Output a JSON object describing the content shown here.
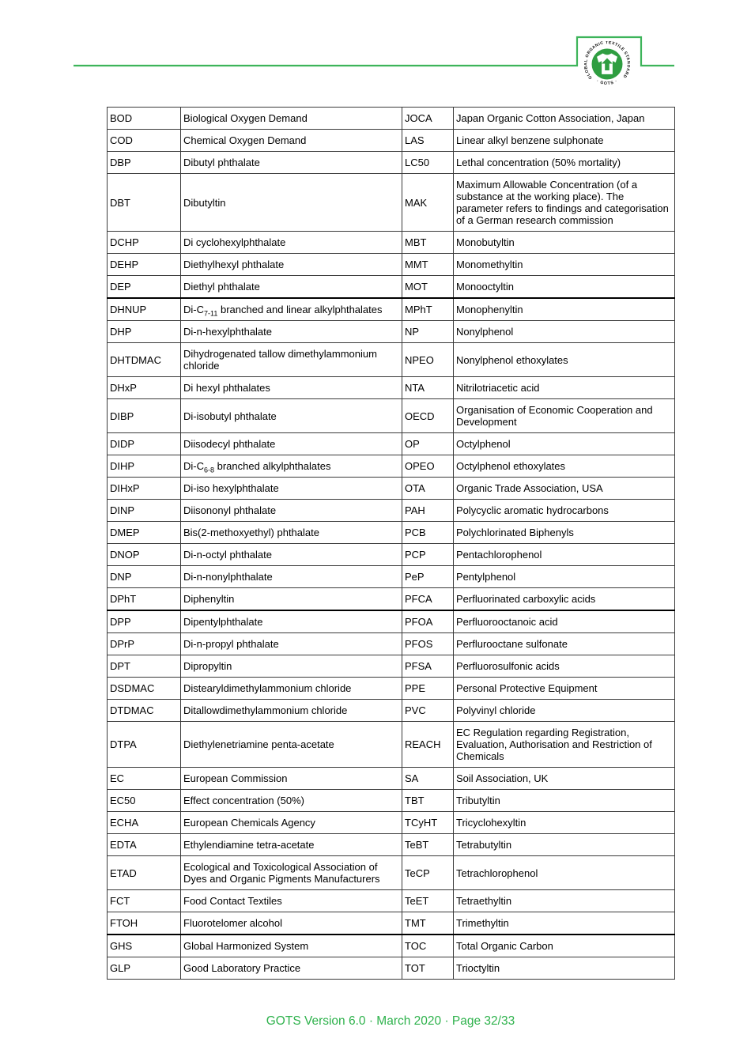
{
  "logo": {
    "ring_text": "GLOBAL ORGANIC TEXTILE STANDARD",
    "bottom_text": "· GOTS ·"
  },
  "colors": {
    "header_line": "#3db45a",
    "footer_text": "#2eb24c",
    "logo_green": "#2f9e41"
  },
  "footer": {
    "text": "GOTS Version 6.0 · March 2020 · Page 32/33"
  },
  "table": {
    "rows": [
      [
        "BOD",
        "Biological Oxygen Demand",
        "JOCA",
        "Japan Organic Cotton Association, Japan"
      ],
      [
        "COD",
        "Chemical Oxygen Demand",
        "LAS",
        "Linear alkyl benzene sulphonate"
      ],
      [
        "DBP",
        "Dibutyl phthalate",
        "LC50",
        "Lethal concentration (50% mortality)"
      ],
      [
        "DBT",
        "Dibutyltin",
        "MAK",
        "Maximum Allowable Concentration (of a substance at the working place). The parameter refers to findings and categorisation of a German research commission"
      ],
      [
        "DCHP",
        "Di cyclohexylphthalate",
        "MBT",
        "Monobutyltin"
      ],
      [
        "DEHP",
        "Diethylhexyl phthalate",
        "MMT",
        "Monomethyltin"
      ],
      [
        "DEP",
        "Diethyl phthalate",
        "MOT",
        "Monooctyltin"
      ],
      [
        "DHNUP",
        "Di-C~7-11~ branched and linear alkylphthalates",
        "MPhT",
        "Monophenyltin"
      ],
      [
        "DHP",
        "Di-n-hexylphthalate",
        "NP",
        "Nonylphenol"
      ],
      [
        "DHTDMAC",
        "Dihydrogenated tallow dimethylammonium chloride",
        "NPEO",
        "Nonylphenol ethoxylates"
      ],
      [
        "DHxP",
        "Di hexyl phthalates",
        "NTA",
        "Nitrilotriacetic acid"
      ],
      [
        "DIBP",
        "Di-isobutyl phthalate",
        "OECD",
        "Organisation of Economic Cooperation and Development"
      ],
      [
        "DIDP",
        "Diisodecyl phthalate",
        "OP",
        "Octylphenol"
      ],
      [
        "DIHP",
        "Di-C~6-8~ branched alkylphthalates",
        "OPEO",
        "Octylphenol ethoxylates"
      ],
      [
        "DIHxP",
        "Di-iso hexylphthalate",
        "OTA",
        "Organic Trade Association, USA"
      ],
      [
        "DINP",
        "Diisononyl phthalate",
        "PAH",
        "Polycyclic aromatic hydrocarbons"
      ],
      [
        "DMEP",
        "Bis(2-methoxyethyl) phthalate",
        "PCB",
        "Polychlorinated Biphenyls"
      ],
      [
        "DNOP",
        "Di-n-octyl phthalate",
        "PCP",
        "Pentachlorophenol"
      ],
      [
        "DNP",
        "Di-n-nonylphthalate",
        "PeP",
        "Pentylphenol"
      ],
      [
        "DPhT",
        "Diphenyltin",
        "PFCA",
        "Perfluorinated carboxylic acids"
      ],
      [
        "DPP",
        "Dipentylphthalate",
        "PFOA",
        "Perfluorooctanoic acid"
      ],
      [
        "DPrP",
        "Di-n-propyl phthalate",
        "PFOS",
        "Perflurooctane sulfonate"
      ],
      [
        "DPT",
        "Dipropyltin",
        "PFSA",
        "Perfluorosulfonic acids"
      ],
      [
        "DSDMAC",
        "Distearyldimethylammonium chloride",
        "PPE",
        "Personal Protective Equipment"
      ],
      [
        "DTDMAC",
        "Ditallowdimethylammonium chloride",
        "PVC",
        "Polyvinyl chloride"
      ],
      [
        "DTPA",
        "Diethylenetriamine penta-acetate",
        "REACH",
        "EC Regulation regarding Registration, Evaluation, Authorisation and Restriction of Chemicals"
      ],
      [
        "EC",
        "European Commission",
        "SA",
        "Soil Association, UK"
      ],
      [
        "EC50",
        "Effect concentration (50%)",
        "TBT",
        "Tributyltin"
      ],
      [
        "ECHA",
        "European Chemicals Agency",
        "TCyHT",
        "Tricyclohexyltin"
      ],
      [
        "EDTA",
        "Ethylendiamine tetra-acetate",
        "TeBT",
        "Tetrabutyltin"
      ],
      [
        "ETAD",
        "Ecological and Toxicological Association of Dyes and Organic Pigments Manufacturers",
        "TeCP",
        "Tetrachlorophenol"
      ],
      [
        "FCT",
        "Food Contact Textiles",
        "TeET",
        "Tetraethyltin"
      ],
      [
        "FTOH",
        "Fluorotelomer alcohol",
        "TMT",
        "Trimethyltin"
      ],
      [
        "GHS",
        "Global Harmonized System",
        "TOC",
        "Total Organic Carbon"
      ],
      [
        "GLP",
        "Good Laboratory Practice",
        "TOT",
        "Trioctyltin"
      ]
    ]
  }
}
